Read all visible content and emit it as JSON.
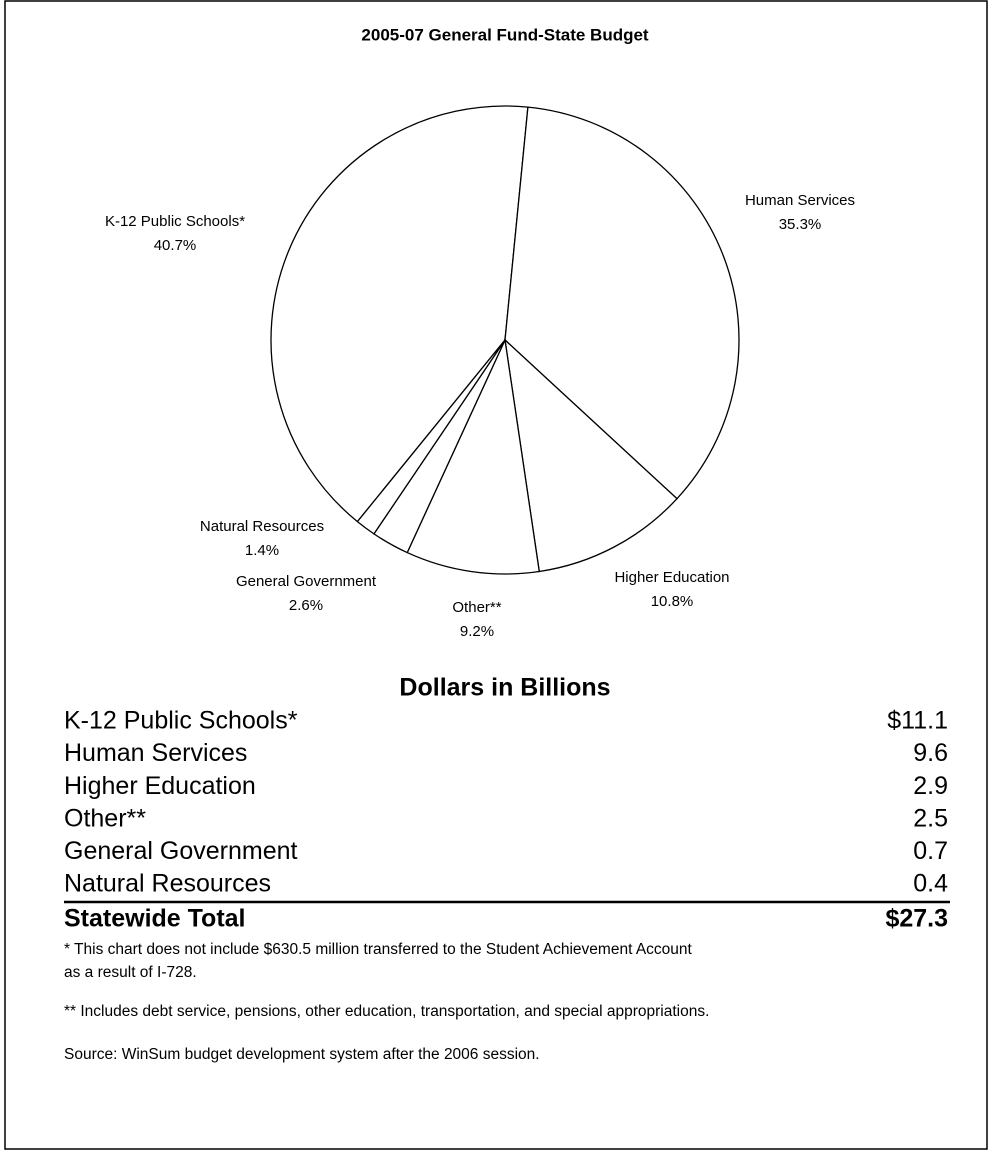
{
  "chart_data": {
    "type": "pie",
    "title": "2005-07 General Fund-State Budget",
    "categories": [
      "K-12 Public Schools*",
      "Human Services",
      "Higher Education",
      "Other**",
      "General Government",
      "Natural Resources"
    ],
    "values": [
      40.7,
      35.3,
      10.8,
      9.2,
      2.6,
      1.4
    ],
    "value_labels": [
      "40.7%",
      "35.3%",
      "10.8%",
      "9.2%",
      "2.6%",
      "1.4%"
    ],
    "color": "#ffffff"
  },
  "table": {
    "title": "Dollars in Billions",
    "rows": [
      [
        "K-12 Public Schools*",
        "$11.1"
      ],
      [
        "Human Services",
        "9.6"
      ],
      [
        "Higher Education",
        "2.9"
      ],
      [
        "Other**",
        "2.5"
      ],
      [
        "General Government",
        "0.7"
      ],
      [
        "Natural Resources",
        "0.4"
      ]
    ],
    "total": [
      "Statewide Total",
      "$27.3"
    ]
  },
  "notes": [
    "*  This chart does not include $630.5 million transferred to the Student Achievement Account",
    "as a result of I-728.",
    "**  Includes debt service, pensions, other education, transportation, and special appropriations.",
    "Source:  WinSum budget development system after the 2006 session."
  ]
}
